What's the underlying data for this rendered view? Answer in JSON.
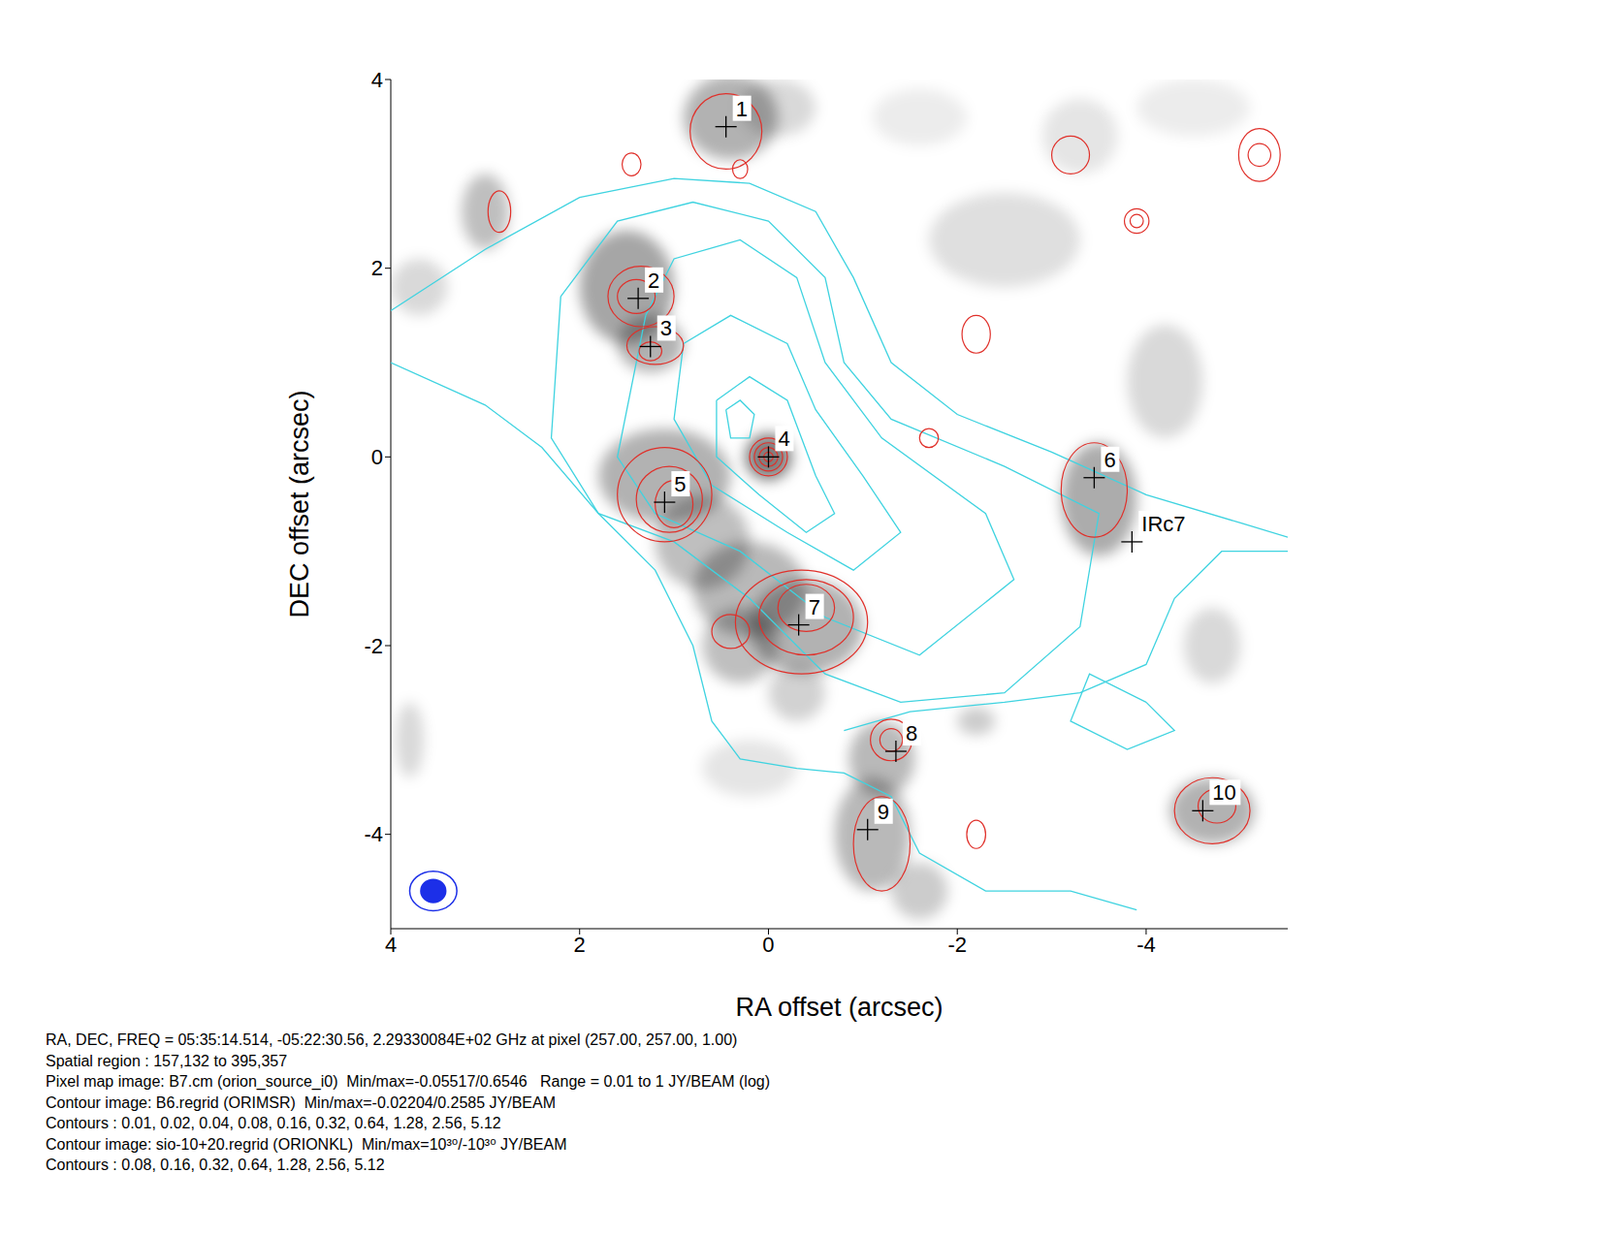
{
  "chart_data": {
    "type": "contour_map",
    "x_label": "RA offset (arcsec)",
    "y_label": "DEC offset (arcsec)",
    "xlim": [
      4,
      -5.5
    ],
    "ylim": [
      -5,
      4
    ],
    "xticks": [
      4,
      2,
      0,
      -2,
      -4
    ],
    "yticks": [
      -4,
      -2,
      0,
      2,
      4
    ],
    "grid": false,
    "pixel_map": {
      "color": "#000000",
      "blobs": [
        {
          "x": 0.4,
          "y": 3.6,
          "rx": 0.5,
          "ry": 0.45,
          "brightness": 0.6
        },
        {
          "x": -0.1,
          "y": 3.7,
          "rx": 0.4,
          "ry": 0.3,
          "brightness": 0.3
        },
        {
          "x": 3.0,
          "y": 2.6,
          "rx": 0.25,
          "ry": 0.4,
          "brightness": 0.5
        },
        {
          "x": 3.7,
          "y": 1.8,
          "rx": 0.3,
          "ry": 0.3,
          "brightness": 0.3
        },
        {
          "x": 1.5,
          "y": 1.8,
          "rx": 0.5,
          "ry": 0.6,
          "brightness": 0.7
        },
        {
          "x": 1.25,
          "y": 1.2,
          "rx": 0.35,
          "ry": 0.3,
          "brightness": 0.6
        },
        {
          "x": 1.1,
          "y": -0.2,
          "rx": 0.7,
          "ry": 0.5,
          "brightness": 0.6
        },
        {
          "x": 0.7,
          "y": -0.9,
          "rx": 0.5,
          "ry": 0.5,
          "brightness": 0.5
        },
        {
          "x": 0,
          "y": 0,
          "rx": 0.25,
          "ry": 0.25,
          "brightness": 1
        },
        {
          "x": 0.2,
          "y": -1.4,
          "rx": 0.6,
          "ry": 0.5,
          "brightness": 0.55
        },
        {
          "x": -0.4,
          "y": -1.8,
          "rx": 0.6,
          "ry": 0.5,
          "brightness": 0.6
        },
        {
          "x": 0.3,
          "y": -2.0,
          "rx": 0.4,
          "ry": 0.4,
          "brightness": 0.5
        },
        {
          "x": -0.3,
          "y": -2.5,
          "rx": 0.3,
          "ry": 0.3,
          "brightness": 0.35
        },
        {
          "x": -1.2,
          "y": -3.2,
          "rx": 0.35,
          "ry": 0.4,
          "brightness": 0.55
        },
        {
          "x": -1.1,
          "y": -4.0,
          "rx": 0.4,
          "ry": 0.6,
          "brightness": 0.55
        },
        {
          "x": -1.6,
          "y": -4.6,
          "rx": 0.3,
          "ry": 0.3,
          "brightness": 0.4
        },
        {
          "x": 0.2,
          "y": -3.3,
          "rx": 0.5,
          "ry": 0.3,
          "brightness": 0.2
        },
        {
          "x": -3.5,
          "y": -0.45,
          "rx": 0.4,
          "ry": 0.6,
          "brightness": 0.65
        },
        {
          "x": -2.5,
          "y": 2.3,
          "rx": 0.8,
          "ry": 0.5,
          "brightness": 0.25
        },
        {
          "x": -1.6,
          "y": 3.6,
          "rx": 0.5,
          "ry": 0.3,
          "brightness": 0.15
        },
        {
          "x": -3.3,
          "y": 3.4,
          "rx": 0.4,
          "ry": 0.4,
          "brightness": 0.2
        },
        {
          "x": -4.5,
          "y": 3.7,
          "rx": 0.6,
          "ry": 0.3,
          "brightness": 0.15
        },
        {
          "x": -4.2,
          "y": 0.8,
          "rx": 0.4,
          "ry": 0.6,
          "brightness": 0.3
        },
        {
          "x": -4.7,
          "y": -2.0,
          "rx": 0.3,
          "ry": 0.4,
          "brightness": 0.3
        },
        {
          "x": -4.7,
          "y": -3.75,
          "rx": 0.45,
          "ry": 0.35,
          "brightness": 0.6
        },
        {
          "x": 3.8,
          "y": -3.0,
          "rx": 0.15,
          "ry": 0.4,
          "brightness": 0.3
        },
        {
          "x": -2.2,
          "y": -2.8,
          "rx": 0.2,
          "ry": 0.15,
          "brightness": 0.4
        }
      ]
    },
    "red_contours": {
      "color": "#e0302a",
      "ellipses": [
        {
          "x": 0.45,
          "y": 3.45,
          "rx": 0.38,
          "ry": 0.4
        },
        {
          "x": 1.45,
          "y": 3.1,
          "rx": 0.1,
          "ry": 0.12
        },
        {
          "x": 1.35,
          "y": 1.7,
          "rx": 0.35,
          "ry": 0.32
        },
        {
          "x": 1.4,
          "y": 1.7,
          "rx": 0.2,
          "ry": 0.18
        },
        {
          "x": 1.2,
          "y": 1.18,
          "rx": 0.3,
          "ry": 0.2
        },
        {
          "x": 1.25,
          "y": 1.12,
          "rx": 0.12,
          "ry": 0.1
        },
        {
          "x": 0,
          "y": 0,
          "rx": 0.2,
          "ry": 0.2
        },
        {
          "x": 0,
          "y": 0,
          "rx": 0.15,
          "ry": 0.15
        },
        {
          "x": 0,
          "y": 0,
          "rx": 0.1,
          "ry": 0.1
        },
        {
          "x": 0,
          "y": 0,
          "rx": 0.05,
          "ry": 0.05
        },
        {
          "x": 1.1,
          "y": -0.4,
          "rx": 0.5,
          "ry": 0.5
        },
        {
          "x": 1.05,
          "y": -0.45,
          "rx": 0.35,
          "ry": 0.35
        },
        {
          "x": 1.0,
          "y": -0.5,
          "rx": 0.2,
          "ry": 0.25
        },
        {
          "x": -0.35,
          "y": -1.75,
          "rx": 0.7,
          "ry": 0.55
        },
        {
          "x": -0.4,
          "y": -1.7,
          "rx": 0.5,
          "ry": 0.4
        },
        {
          "x": -0.4,
          "y": -1.6,
          "rx": 0.3,
          "ry": 0.25
        },
        {
          "x": 0.4,
          "y": -1.85,
          "rx": 0.2,
          "ry": 0.18
        },
        {
          "x": -3.45,
          "y": -0.35,
          "rx": 0.35,
          "ry": 0.5
        },
        {
          "x": -1.3,
          "y": -3.0,
          "rx": 0.22,
          "ry": 0.22
        },
        {
          "x": -1.3,
          "y": -3.0,
          "rx": 0.12,
          "ry": 0.12
        },
        {
          "x": -1.2,
          "y": -4.1,
          "rx": 0.3,
          "ry": 0.5
        },
        {
          "x": -4.7,
          "y": -3.75,
          "rx": 0.4,
          "ry": 0.35
        },
        {
          "x": -4.75,
          "y": -3.7,
          "rx": 0.2,
          "ry": 0.18
        },
        {
          "x": -3.9,
          "y": 2.5,
          "rx": 0.13,
          "ry": 0.13
        },
        {
          "x": -3.9,
          "y": 2.5,
          "rx": 0.07,
          "ry": 0.07
        },
        {
          "x": -5.2,
          "y": 3.2,
          "rx": 0.22,
          "ry": 0.28
        },
        {
          "x": -5.2,
          "y": 3.2,
          "rx": 0.12,
          "ry": 0.12
        },
        {
          "x": -3.2,
          "y": 3.2,
          "rx": 0.2,
          "ry": 0.2
        },
        {
          "x": -2.2,
          "y": 1.3,
          "rx": 0.15,
          "ry": 0.2
        },
        {
          "x": -1.7,
          "y": 0.2,
          "rx": 0.1,
          "ry": 0.1
        },
        {
          "x": 2.85,
          "y": 2.6,
          "rx": 0.12,
          "ry": 0.22
        },
        {
          "x": -2.2,
          "y": -4.0,
          "rx": 0.1,
          "ry": 0.15
        },
        {
          "x": 0.3,
          "y": 3.05,
          "rx": 0.08,
          "ry": 0.1
        }
      ]
    },
    "cyan_contours": {
      "color": "#3fd3e0",
      "lines": [
        [
          [
            4,
            1.55
          ],
          [
            3,
            2.2
          ],
          [
            2,
            2.75
          ],
          [
            1,
            2.95
          ],
          [
            0.2,
            2.9
          ],
          [
            -0.5,
            2.6
          ],
          [
            -0.9,
            1.9
          ],
          [
            -1.3,
            1.0
          ],
          [
            -2,
            0.45
          ],
          [
            -3,
            0.05
          ],
          [
            -4,
            -0.4
          ],
          [
            -5,
            -0.7
          ],
          [
            -5.5,
            -0.85
          ]
        ],
        [
          [
            4,
            1.0
          ],
          [
            3,
            0.55
          ],
          [
            2.4,
            0.1
          ],
          [
            1.8,
            -0.6
          ],
          [
            1.2,
            -1.2
          ],
          [
            0.8,
            -2.0
          ],
          [
            0.6,
            -2.8
          ],
          [
            0.3,
            -3.2
          ],
          [
            -0.3,
            -3.3
          ],
          [
            -0.8,
            -3.35
          ],
          [
            -1.3,
            -3.6
          ],
          [
            -1.6,
            -4.2
          ],
          [
            -2.3,
            -4.6
          ],
          [
            -3.2,
            -4.6
          ],
          [
            -3.9,
            -4.8
          ]
        ],
        [
          [
            -5.5,
            -1.0
          ],
          [
            -4.8,
            -1.0
          ],
          [
            -4.3,
            -1.5
          ],
          [
            -4,
            -2.2
          ],
          [
            -3.3,
            -2.5
          ],
          [
            -2.5,
            -2.6
          ],
          [
            -1.5,
            -2.7
          ],
          [
            -0.8,
            -2.9
          ]
        ],
        [
          [
            2.2,
            1.7
          ],
          [
            1.6,
            2.5
          ],
          [
            0.8,
            2.7
          ],
          [
            0,
            2.5
          ],
          [
            -0.6,
            1.9
          ],
          [
            -0.8,
            1.0
          ],
          [
            -1.3,
            0.4
          ],
          [
            -2.5,
            -0.1
          ],
          [
            -3.5,
            -0.6
          ],
          [
            -3.3,
            -1.8
          ],
          [
            -2.5,
            -2.5
          ],
          [
            -1.4,
            -2.6
          ],
          [
            -0.6,
            -2.3
          ],
          [
            0.2,
            -1.5
          ],
          [
            1.0,
            -0.9
          ],
          [
            1.8,
            -0.6
          ],
          [
            2.3,
            0.2
          ],
          [
            2.2,
            1.7
          ]
        ],
        [
          [
            1.3,
            1.5
          ],
          [
            1.0,
            2.1
          ],
          [
            0.3,
            2.3
          ],
          [
            -0.3,
            1.9
          ],
          [
            -0.6,
            1.0
          ],
          [
            -1.2,
            0.2
          ],
          [
            -2.3,
            -0.6
          ],
          [
            -2.6,
            -1.3
          ],
          [
            -1.6,
            -2.1
          ],
          [
            -0.6,
            -1.7
          ],
          [
            0.3,
            -1.0
          ],
          [
            1.2,
            -0.6
          ],
          [
            1.6,
            0.0
          ],
          [
            1.3,
            1.5
          ]
        ],
        [
          [
            0.9,
            1.2
          ],
          [
            0.4,
            1.5
          ],
          [
            -0.2,
            1.2
          ],
          [
            -0.5,
            0.5
          ],
          [
            -1.0,
            -0.2
          ],
          [
            -1.4,
            -0.8
          ],
          [
            -0.9,
            -1.2
          ],
          [
            -0.2,
            -0.8
          ],
          [
            0.6,
            -0.3
          ],
          [
            1.0,
            0.4
          ],
          [
            0.9,
            1.2
          ]
        ],
        [
          [
            0.55,
            0.6
          ],
          [
            0.2,
            0.85
          ],
          [
            -0.2,
            0.6
          ],
          [
            -0.5,
            -0.2
          ],
          [
            -0.7,
            -0.6
          ],
          [
            -0.4,
            -0.8
          ],
          [
            0.1,
            -0.4
          ],
          [
            0.55,
            0.0
          ],
          [
            0.55,
            0.6
          ]
        ],
        [
          [
            0.45,
            0.5
          ],
          [
            0.3,
            0.6
          ],
          [
            0.15,
            0.45
          ],
          [
            0.2,
            0.2
          ],
          [
            0.4,
            0.2
          ],
          [
            0.45,
            0.5
          ]
        ],
        [
          [
            -4.0,
            -2.6
          ],
          [
            -3.4,
            -2.3
          ],
          [
            -3.2,
            -2.8
          ],
          [
            -3.8,
            -3.1
          ],
          [
            -4.3,
            -2.9
          ],
          [
            -4.0,
            -2.6
          ]
        ]
      ]
    },
    "sources": [
      {
        "label": "1",
        "x": 0.45,
        "y": 3.5
      },
      {
        "label": "2",
        "x": 1.38,
        "y": 1.68
      },
      {
        "label": "3",
        "x": 1.25,
        "y": 1.17
      },
      {
        "label": "4",
        "x": 0,
        "y": 0
      },
      {
        "label": "5",
        "x": 1.1,
        "y": -0.48
      },
      {
        "label": "6",
        "x": -3.45,
        "y": -0.22
      },
      {
        "label": "IRc7",
        "x": -3.85,
        "y": -0.9
      },
      {
        "label": "7",
        "x": -0.32,
        "y": -1.78
      },
      {
        "label": "8",
        "x": -1.35,
        "y": -3.12
      },
      {
        "label": "9",
        "x": -1.05,
        "y": -3.95
      },
      {
        "label": "10",
        "x": -4.6,
        "y": -3.75
      }
    ],
    "beam": {
      "color": "#1c2fe8",
      "x": 3.55,
      "y": -4.6,
      "outer": {
        "rx": 0.25,
        "ry": 0.21
      },
      "inner": {
        "rx": 0.14,
        "ry": 0.13
      }
    },
    "footer": [
      "RA, DEC, FREQ = 05:35:14.514, -05:22:30.56, 2.29330084E+02 GHz at pixel (257.00, 257.00, 1.00)",
      "Spatial region : 157,132 to 395,357",
      "Pixel map image: B7.cm (orion_source_i0)  Min/max=-0.05517/0.6546   Range = 0.01 to 1 JY/BEAM (log)",
      "Contour image: B6.regrid (ORIMSR)  Min/max=-0.02204/0.2585 JY/BEAM",
      "Contours : 0.01, 0.02, 0.04, 0.08, 0.16, 0.32, 0.64, 1.28, 2.56, 5.12",
      "Contour image: sio-10+20.regrid (ORIONKL)  Min/max=10³⁰/-10³⁰ JY/BEAM",
      "Contours : 0.08, 0.16, 0.32, 0.64, 1.28, 2.56, 5.12"
    ]
  }
}
